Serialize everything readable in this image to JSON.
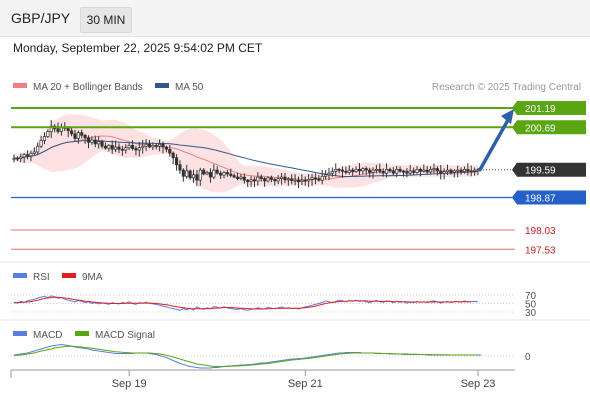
{
  "header": {
    "symbol": "GBP/JPY",
    "interval": "30 MIN",
    "datetime": "Monday, September 22, 2025 9:54:02 PM CET"
  },
  "legend": {
    "ma20_label": "MA 20 + Bollinger Bands",
    "ma50_label": "MA 50",
    "credit": "Research © 2025 Trading Central",
    "rsi_label": "RSI",
    "rsi_ma_label": "9MA",
    "macd_label": "MACD",
    "macd_signal_label": "MACD Signal"
  },
  "colors": {
    "ma20": "#f08080",
    "ma50": "#34568b",
    "resistance": "#5aa512",
    "support": "#2560c8",
    "limit_red": "#e07070",
    "candle": "#333333",
    "arrow": "#2e5fa8",
    "rsi": "#5a7ee0",
    "rsi_ma": "#e02020",
    "macd": "#5a7ee0",
    "macd_signal": "#5aa512"
  },
  "chart_data": [
    {
      "type": "candlestick",
      "ylim": [
        197.2,
        201.5
      ],
      "levels": [
        {
          "value": "201.19",
          "style": "resistance"
        },
        {
          "value": "200.69",
          "style": "resistance"
        },
        {
          "value": "199.59",
          "style": "current"
        },
        {
          "value": "198.87",
          "style": "support"
        },
        {
          "value": "198.03",
          "style": "limit"
        },
        {
          "value": "197.53",
          "style": "limit"
        }
      ],
      "x_ticks": [
        "Sep 19",
        "Sep 21",
        "Sep 23"
      ],
      "x_tick_index": [
        34,
        86,
        137
      ],
      "arrow": {
        "from": 199.59,
        "to": 201.19
      },
      "close": [
        199.89,
        199.88,
        199.92,
        199.98,
        199.95,
        200.01,
        200.05,
        200.2,
        200.35,
        200.45,
        200.58,
        200.72,
        200.65,
        200.58,
        200.7,
        200.66,
        200.6,
        200.52,
        200.4,
        200.55,
        200.48,
        200.42,
        200.3,
        200.36,
        200.26,
        200.32,
        200.2,
        200.15,
        200.22,
        200.12,
        200.18,
        200.12,
        200.1,
        200.16,
        200.22,
        200.14,
        200.1,
        200.16,
        200.2,
        200.25,
        200.18,
        200.22,
        200.2,
        200.25,
        200.18,
        200.12,
        200.02,
        199.9,
        199.72,
        199.58,
        199.42,
        199.56,
        199.38,
        199.46,
        199.32,
        199.58,
        199.48,
        199.52,
        199.4,
        199.58,
        199.5,
        199.45,
        199.52,
        199.48,
        199.44,
        199.4,
        199.36,
        199.4,
        199.32,
        199.28,
        199.33,
        199.3,
        199.4,
        199.36,
        199.3,
        199.38,
        199.34,
        199.3,
        199.36,
        199.4,
        199.33,
        199.35,
        199.31,
        199.32,
        199.28,
        199.32,
        199.3,
        199.34,
        199.38,
        199.36,
        199.32,
        199.42,
        199.46,
        199.5,
        199.55,
        199.6,
        199.58,
        199.55,
        199.52,
        199.58,
        199.54,
        199.6,
        199.56,
        199.62,
        199.58,
        199.52,
        199.58,
        199.6,
        199.55,
        199.5,
        199.6,
        199.56,
        199.5,
        199.6,
        199.55,
        199.54,
        199.5,
        199.56,
        199.52,
        199.6,
        199.55,
        199.58,
        199.53,
        199.6,
        199.62,
        199.56,
        199.5,
        199.54,
        199.58,
        199.52,
        199.56,
        199.58,
        199.54,
        199.6,
        199.56,
        199.55,
        199.58,
        199.59
      ]
    },
    {
      "type": "line",
      "title": "RSI",
      "ylim": [
        30,
        70
      ],
      "y_ticks": [
        "70",
        "50",
        "30"
      ],
      "series": [
        {
          "name": "RSI",
          "values": [
            52,
            51,
            55,
            53,
            56,
            58,
            60,
            63,
            65,
            67,
            64,
            68,
            66,
            62,
            64,
            60,
            58,
            56,
            54,
            57,
            55,
            52,
            54,
            50,
            52,
            49,
            51,
            50,
            48,
            52,
            50,
            49,
            52,
            51,
            54,
            50,
            48,
            52,
            51,
            53,
            50,
            49,
            48,
            46,
            44,
            42,
            40,
            38,
            36,
            34,
            38,
            35,
            39,
            34,
            42,
            38,
            36,
            40,
            37,
            43,
            41,
            39,
            42,
            40,
            38,
            37,
            36,
            38,
            35,
            34,
            36,
            37,
            40,
            38,
            37,
            41,
            39,
            38,
            40,
            42,
            39,
            40,
            38,
            39,
            37,
            40,
            42,
            44,
            46,
            48,
            50,
            52,
            56,
            54,
            52,
            55,
            58,
            56,
            54,
            57,
            55,
            58,
            55,
            56,
            54,
            52,
            55,
            57,
            54,
            53,
            56,
            55,
            52,
            55,
            53,
            54,
            51,
            53,
            52,
            55,
            53,
            54,
            52,
            55,
            56,
            54,
            51,
            53,
            55,
            52,
            54,
            55,
            53,
            56,
            54,
            54,
            55,
            54
          ]
        },
        {
          "name": "9MA",
          "values": [
            52,
            52,
            52.5,
            53,
            53.5,
            54.5,
            56,
            58,
            60,
            62,
            63,
            64,
            65,
            64.5,
            64,
            63,
            62,
            60.5,
            59,
            58,
            57,
            55.5,
            55,
            53.5,
            53,
            52,
            51.5,
            51,
            50.5,
            50,
            50,
            50,
            50,
            50.5,
            50.5,
            50.5,
            50.5,
            50.5,
            51,
            51,
            51,
            50.5,
            50,
            49,
            48,
            47,
            45.5,
            44,
            42.5,
            41,
            40,
            39,
            38,
            37.5,
            37.5,
            37.5,
            38,
            38,
            38.5,
            39,
            39.5,
            40,
            40.5,
            40.5,
            40.5,
            40,
            39.5,
            39,
            38.5,
            38,
            37.5,
            37,
            37,
            37,
            37,
            37.5,
            38,
            38.5,
            38.5,
            39,
            39,
            39,
            39,
            39,
            39,
            39.5,
            40,
            41,
            42.5,
            44,
            46,
            48,
            50,
            51.5,
            52.5,
            53.5,
            54.5,
            55,
            55.5,
            56,
            56,
            56.5,
            56.5,
            56,
            56,
            55.5,
            55.5,
            55.5,
            55,
            55,
            55,
            55,
            54.5,
            54.5,
            54.5,
            54,
            54,
            53.5,
            53.5,
            53.5,
            53.5,
            53.5,
            53.5,
            53.5,
            53.5,
            53.5,
            53.5,
            53.5,
            53.5,
            53.5,
            54,
            54,
            54,
            54,
            54,
            54
          ]
        }
      ]
    },
    {
      "type": "line",
      "title": "MACD",
      "y_ticks": [
        "0"
      ],
      "series": [
        {
          "name": "MACD",
          "values": [
            0.02,
            0.03,
            0.04,
            0.05,
            0.06,
            0.08,
            0.1,
            0.12,
            0.14,
            0.16,
            0.18,
            0.2,
            0.21,
            0.22,
            0.23,
            0.22,
            0.21,
            0.2,
            0.18,
            0.17,
            0.16,
            0.15,
            0.14,
            0.12,
            0.11,
            0.1,
            0.09,
            0.08,
            0.07,
            0.06,
            0.05,
            0.05,
            0.05,
            0.05,
            0.05,
            0.05,
            0.06,
            0.06,
            0.06,
            0.06,
            0.05,
            0.04,
            0.03,
            0.01,
            -0.01,
            -0.03,
            -0.06,
            -0.09,
            -0.12,
            -0.15,
            -0.17,
            -0.19,
            -0.21,
            -0.22,
            -0.23,
            -0.24,
            -0.24,
            -0.24,
            -0.24,
            -0.23,
            -0.23,
            -0.22,
            -0.21,
            -0.2,
            -0.2,
            -0.19,
            -0.19,
            -0.18,
            -0.18,
            -0.17,
            -0.17,
            -0.16,
            -0.15,
            -0.14,
            -0.14,
            -0.13,
            -0.12,
            -0.11,
            -0.1,
            -0.09,
            -0.08,
            -0.07,
            -0.06,
            -0.06,
            -0.05,
            -0.05,
            -0.04,
            -0.03,
            -0.02,
            -0.01,
            0.0,
            0.01,
            0.02,
            0.03,
            0.04,
            0.05,
            0.06,
            0.06,
            0.07,
            0.07,
            0.07,
            0.07,
            0.07,
            0.06,
            0.06,
            0.06,
            0.06,
            0.05,
            0.05,
            0.05,
            0.05,
            0.04,
            0.04,
            0.04,
            0.04,
            0.03,
            0.03,
            0.03,
            0.03,
            0.03,
            0.03,
            0.03,
            0.02,
            0.02,
            0.02,
            0.02,
            0.02,
            0.02,
            0.02,
            0.02,
            0.02,
            0.02,
            0.02,
            0.02,
            0.02,
            0.02,
            0.02,
            0.02,
            0.02
          ]
        },
        {
          "name": "MACD Signal",
          "values": [
            0.01,
            0.015,
            0.02,
            0.03,
            0.04,
            0.05,
            0.06,
            0.08,
            0.1,
            0.11,
            0.13,
            0.14,
            0.16,
            0.17,
            0.18,
            0.19,
            0.195,
            0.195,
            0.19,
            0.185,
            0.18,
            0.17,
            0.165,
            0.155,
            0.145,
            0.135,
            0.125,
            0.115,
            0.105,
            0.095,
            0.085,
            0.08,
            0.075,
            0.07,
            0.065,
            0.06,
            0.06,
            0.06,
            0.06,
            0.06,
            0.06,
            0.055,
            0.05,
            0.04,
            0.03,
            0.015,
            0.0,
            -0.02,
            -0.04,
            -0.06,
            -0.08,
            -0.1,
            -0.12,
            -0.14,
            -0.16,
            -0.17,
            -0.18,
            -0.19,
            -0.2,
            -0.21,
            -0.21,
            -0.21,
            -0.21,
            -0.21,
            -0.205,
            -0.2,
            -0.2,
            -0.195,
            -0.19,
            -0.185,
            -0.18,
            -0.175,
            -0.17,
            -0.16,
            -0.155,
            -0.15,
            -0.14,
            -0.13,
            -0.12,
            -0.11,
            -0.1,
            -0.09,
            -0.08,
            -0.075,
            -0.07,
            -0.06,
            -0.055,
            -0.05,
            -0.04,
            -0.03,
            -0.02,
            -0.01,
            0.0,
            0.01,
            0.02,
            0.03,
            0.04,
            0.045,
            0.05,
            0.055,
            0.06,
            0.06,
            0.06,
            0.06,
            0.06,
            0.06,
            0.06,
            0.055,
            0.055,
            0.05,
            0.05,
            0.05,
            0.045,
            0.045,
            0.04,
            0.04,
            0.04,
            0.035,
            0.035,
            0.035,
            0.03,
            0.03,
            0.03,
            0.03,
            0.025,
            0.025,
            0.025,
            0.025,
            0.025,
            0.02,
            0.02,
            0.02,
            0.02,
            0.02,
            0.02,
            0.02,
            0.02,
            0.02
          ]
        }
      ]
    }
  ]
}
